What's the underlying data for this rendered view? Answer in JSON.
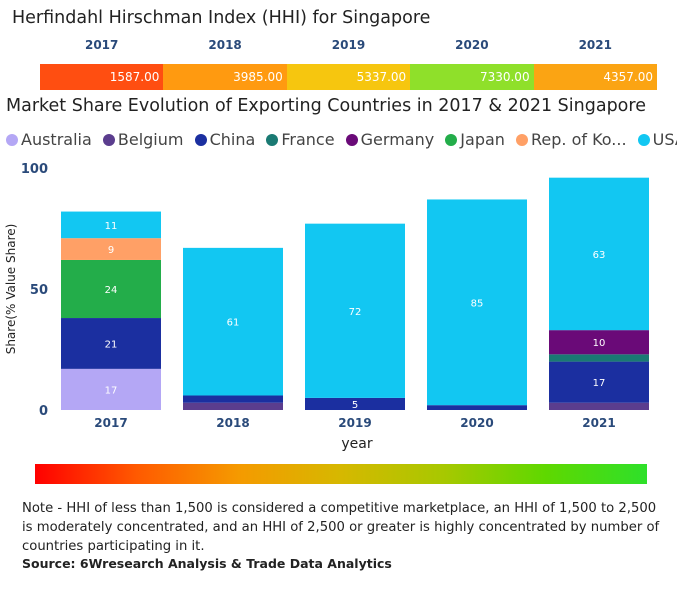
{
  "hhi": {
    "title": "Herfindahl Hirschman Index (HHI) for Singapore",
    "years": [
      "2017",
      "2018",
      "2019",
      "2020",
      "2021"
    ],
    "values": [
      "1587.00",
      "3985.00",
      "5337.00",
      "7330.00",
      "4357.00"
    ],
    "colors": [
      "#ff4e11",
      "#ff9a10",
      "#f6c60f",
      "#8fe02a",
      "#fba413"
    ]
  },
  "market": {
    "title": "Market Share Evolution of Exporting Countries in 2017 & 2021 Singapore"
  },
  "legend": [
    {
      "label": "Australia",
      "color": "#b4a7f5"
    },
    {
      "label": "Belgium",
      "color": "#5b3d8e"
    },
    {
      "label": "China",
      "color": "#1b2fa0"
    },
    {
      "label": "France",
      "color": "#1a7a73"
    },
    {
      "label": "Germany",
      "color": "#6a0a78"
    },
    {
      "label": "Japan",
      "color": "#23ad4a"
    },
    {
      "label": "Rep. of Ko...",
      "color": "#ffa066"
    },
    {
      "label": "USA",
      "color": "#12c7f2"
    }
  ],
  "chart_data": {
    "type": "bar",
    "stacked": true,
    "categories": [
      "2017",
      "2018",
      "2019",
      "2020",
      "2021"
    ],
    "xlabel": "year",
    "ylabel": "Share(% Value Share)",
    "ylim": [
      0,
      100
    ],
    "yticks": [
      0,
      50,
      100
    ],
    "series": [
      {
        "name": "Australia",
        "color": "#b4a7f5",
        "values": [
          17,
          0,
          0,
          0,
          0
        ],
        "labels": [
          "17",
          "",
          "",
          "",
          ""
        ]
      },
      {
        "name": "Belgium",
        "color": "#5b3d8e",
        "values": [
          0,
          3,
          0,
          0,
          3
        ],
        "labels": [
          "",
          "",
          "",
          "",
          ""
        ]
      },
      {
        "name": "China",
        "color": "#1b2fa0",
        "values": [
          21,
          3,
          5,
          2,
          17
        ],
        "labels": [
          "21",
          "",
          "5",
          "",
          "17"
        ]
      },
      {
        "name": "France",
        "color": "#1a7a73",
        "values": [
          0,
          0,
          0,
          0,
          3
        ],
        "labels": [
          "",
          "",
          "",
          "",
          ""
        ]
      },
      {
        "name": "Germany",
        "color": "#6a0a78",
        "values": [
          0,
          0,
          0,
          0,
          10
        ],
        "labels": [
          "",
          "",
          "",
          "",
          "10"
        ]
      },
      {
        "name": "Japan",
        "color": "#23ad4a",
        "values": [
          24,
          0,
          0,
          0,
          0
        ],
        "labels": [
          "24",
          "",
          "",
          "",
          ""
        ]
      },
      {
        "name": "Rep. of Ko...",
        "color": "#ffa066",
        "values": [
          9,
          0,
          0,
          0,
          0
        ],
        "labels": [
          "9",
          "",
          "",
          "",
          ""
        ]
      },
      {
        "name": "USA",
        "color": "#12c7f2",
        "values": [
          11,
          61,
          72,
          85,
          63
        ],
        "labels": [
          "11",
          "61",
          "72",
          "85",
          "63"
        ]
      }
    ]
  },
  "note": "Note - HHI of less than 1,500 is considered a competitive marketplace, an HHI of 1,500 to 2,500 is moderately concentrated, and an HHI of 2,500 or greater is highly concentrated by number of countries participating in it.",
  "source": "Source: 6Wresearch Analysis & Trade Data Analytics"
}
